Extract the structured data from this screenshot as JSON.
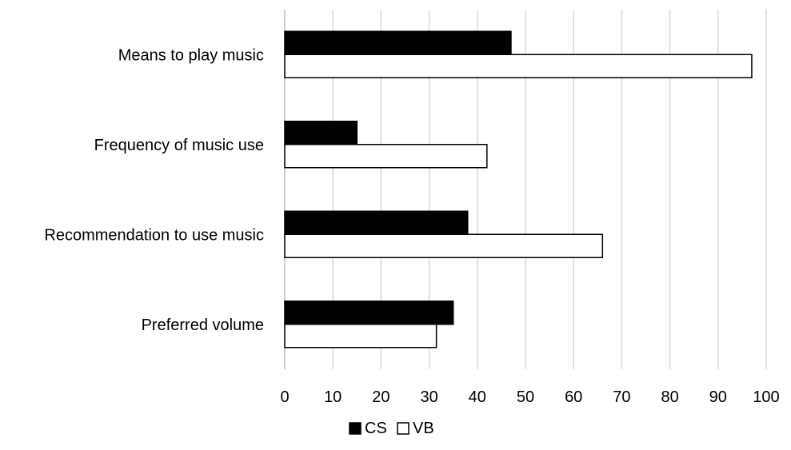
{
  "chart_data": {
    "type": "bar",
    "orientation": "horizontal",
    "categories": [
      "Means to play music",
      "Frequency of music use",
      "Recommendation to use music",
      "Preferred volume"
    ],
    "series": [
      {
        "name": "CS",
        "values": [
          47,
          15,
          38,
          35
        ],
        "color": "#000000"
      },
      {
        "name": "VB",
        "values": [
          97,
          42,
          66,
          31.5
        ],
        "color": "#ffffff"
      }
    ],
    "title": "",
    "xlabel": "",
    "ylabel": "",
    "xlim": [
      0,
      100
    ],
    "xticks": [
      "0",
      "10",
      "20",
      "30",
      "40",
      "50",
      "60",
      "70",
      "80",
      "90",
      "100"
    ],
    "grid": "vertical",
    "legend": "bottom-center"
  }
}
